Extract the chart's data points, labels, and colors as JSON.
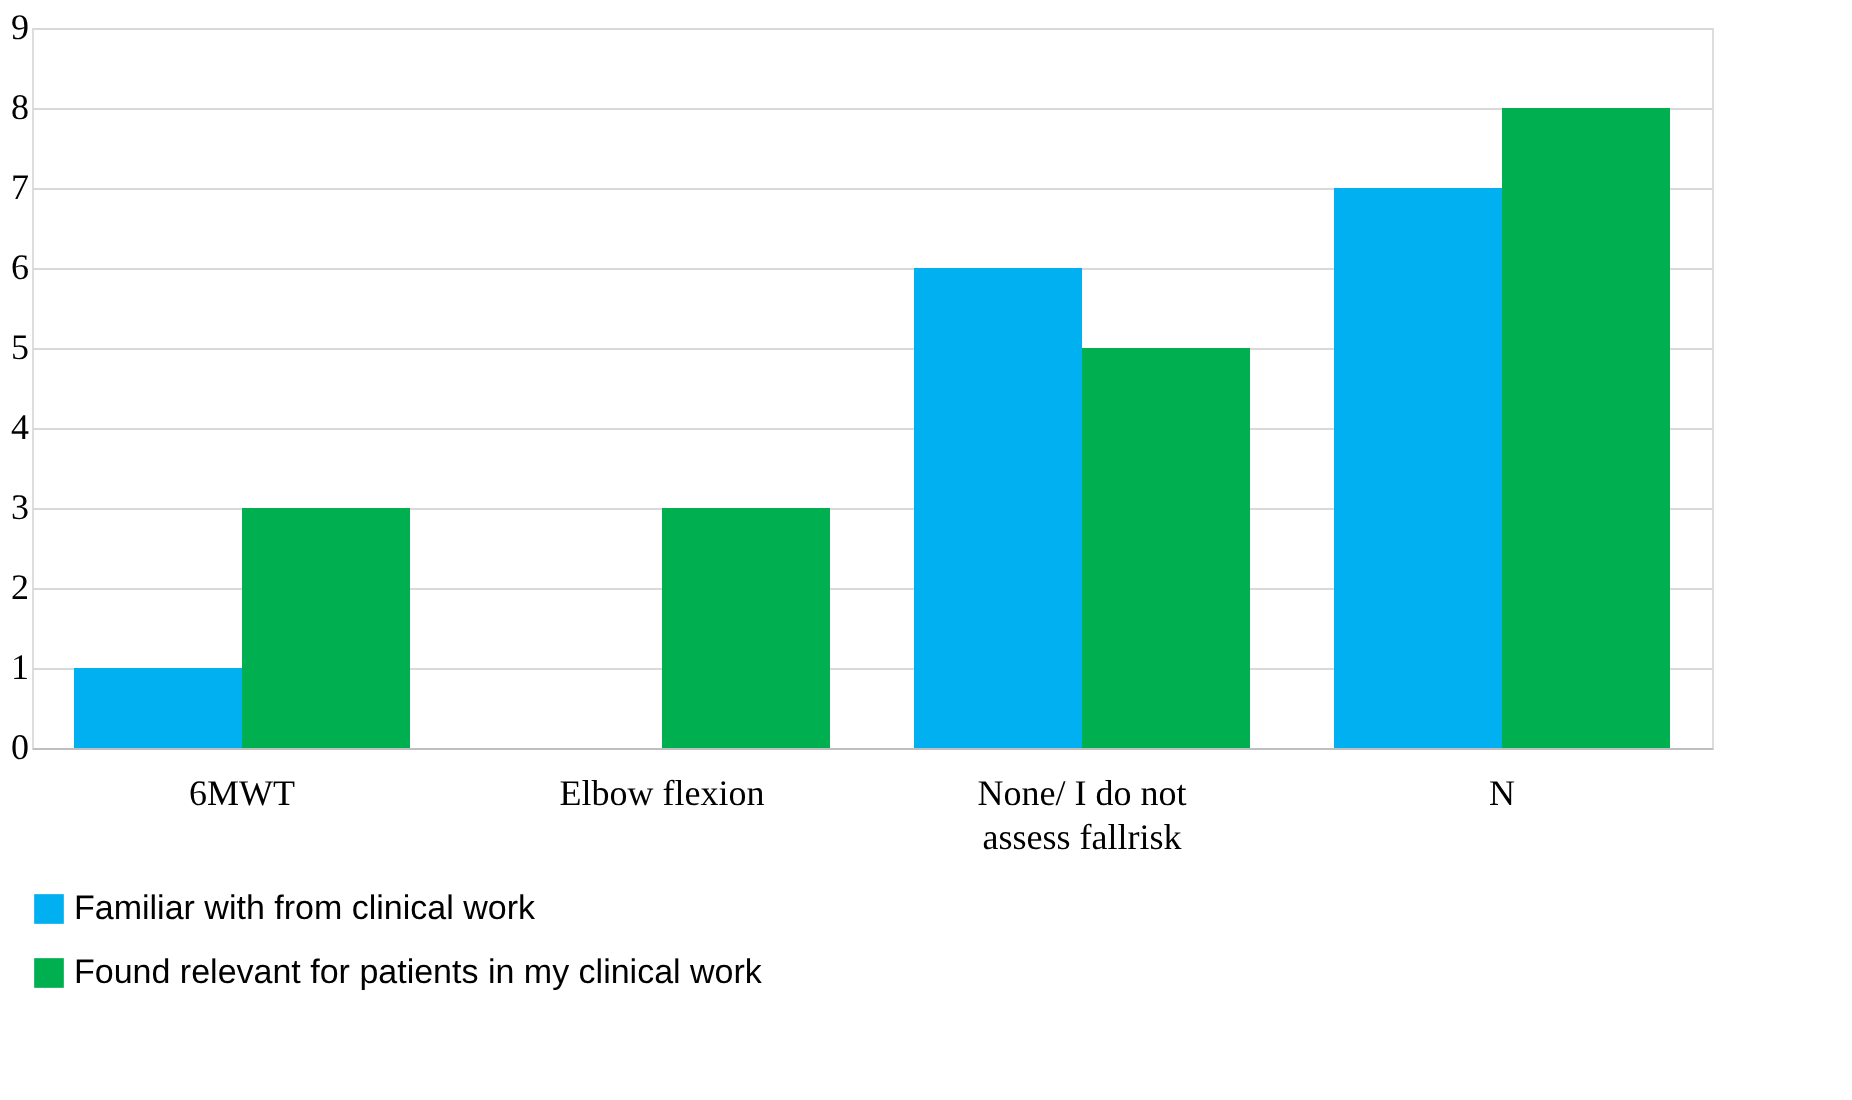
{
  "chart_data": {
    "type": "bar",
    "categories": [
      "6MWT",
      "Elbow flexion",
      "None/ I do not assess fallrisk",
      "N"
    ],
    "series": [
      {
        "name": "Familiar with  from clinical work",
        "color": "#00b0f0",
        "values": [
          1,
          0,
          6,
          7
        ]
      },
      {
        "name": "Found relevant for patients in my clinical work",
        "color": "#00b050",
        "values": [
          3,
          3,
          5,
          8
        ]
      }
    ],
    "ylim": [
      0,
      9
    ],
    "yticks": [
      0,
      1,
      2,
      3,
      4,
      5,
      6,
      7,
      8,
      9
    ],
    "grid": "y",
    "legend": "bottom"
  }
}
